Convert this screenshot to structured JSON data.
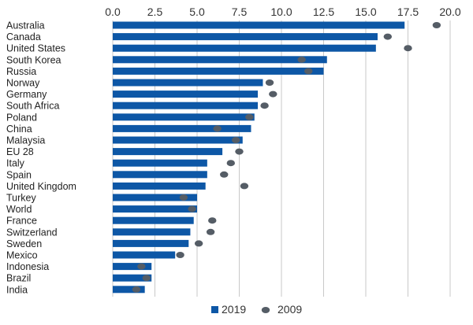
{
  "chart_data": {
    "type": "bar",
    "orientation": "horizontal",
    "categories": [
      "Australia",
      "Canada",
      "United States",
      "South Korea",
      "Russia",
      "Norway",
      "Germany",
      "South Africa",
      "Poland",
      "China",
      "Malaysia",
      "EU 28",
      "Italy",
      "Spain",
      "United Kingdom",
      "Turkey",
      "World",
      "France",
      "Switzerland",
      "Sweden",
      "Mexico",
      "Indonesia",
      "Brazil",
      "India"
    ],
    "series": [
      {
        "name": "2019",
        "mark": "bar",
        "color": "#0d57a6",
        "values": [
          17.3,
          15.7,
          15.6,
          12.7,
          12.5,
          8.9,
          8.6,
          8.6,
          8.4,
          8.2,
          7.7,
          6.5,
          5.6,
          5.6,
          5.5,
          5.0,
          5.0,
          4.8,
          4.6,
          4.5,
          3.7,
          2.3,
          2.3,
          1.9
        ]
      },
      {
        "name": "2009",
        "mark": "dot",
        "color": "#555d66",
        "values": [
          19.2,
          16.3,
          17.5,
          11.2,
          11.6,
          9.3,
          9.5,
          9.0,
          8.1,
          6.2,
          7.3,
          7.5,
          7.0,
          6.6,
          7.8,
          4.2,
          4.7,
          5.9,
          5.8,
          5.1,
          4.0,
          1.7,
          2.0,
          1.4
        ]
      }
    ],
    "xlim": [
      0,
      20
    ],
    "xticks": [
      "0.0",
      "2.5",
      "5.0",
      "7.5",
      "10.0",
      "12.5",
      "15.0",
      "17.5",
      "20.0"
    ],
    "grid": "vertical",
    "axis_position": "top",
    "legend": "bottom"
  }
}
